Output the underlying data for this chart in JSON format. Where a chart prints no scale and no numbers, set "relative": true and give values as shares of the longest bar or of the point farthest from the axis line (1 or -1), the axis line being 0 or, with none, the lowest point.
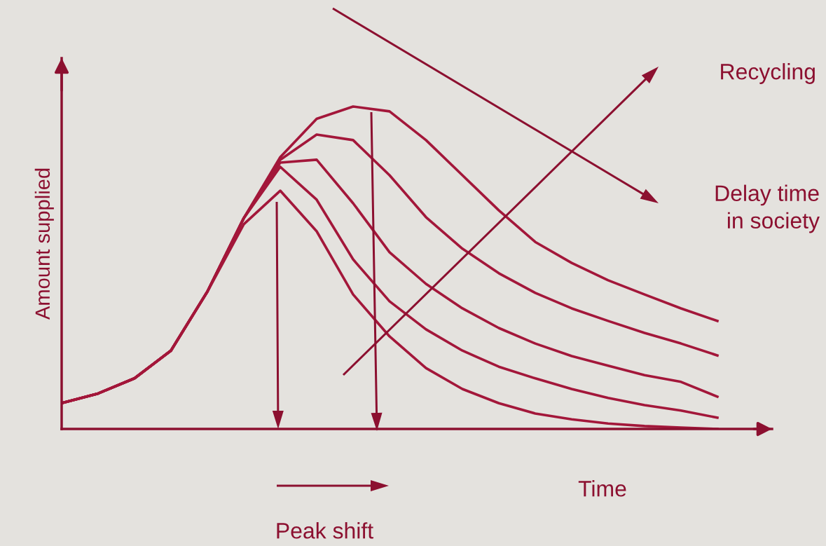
{
  "chart_data": {
    "type": "line",
    "relative": true,
    "ylabel": "Amount supplied",
    "xlabel": "Time",
    "categories": [
      null,
      null,
      null,
      null,
      null,
      null,
      null,
      null,
      null,
      null,
      null,
      null,
      null,
      null,
      null,
      null,
      null,
      null,
      null
    ],
    "series": [
      {
        "color": "#a3173a",
        "values": [
          0.08,
          0.11,
          0.157,
          0.243,
          0.426,
          0.654,
          0.843,
          0.962,
          1.0,
          0.985,
          0.896,
          0.787,
          0.678,
          0.58,
          0.515,
          0.461,
          0.417,
          0.374,
          0.335
        ]
      },
      {
        "color": "#a3173a",
        "values": [
          0.08,
          0.11,
          0.157,
          0.243,
          0.426,
          0.654,
          0.835,
          0.913,
          0.896,
          0.787,
          0.657,
          0.559,
          0.483,
          0.422,
          0.374,
          0.335,
          0.298,
          0.265,
          0.228
        ]
      },
      {
        "color": "#a3173a",
        "values": [
          0.08,
          0.11,
          0.157,
          0.243,
          0.426,
          0.654,
          0.826,
          0.835,
          0.7,
          0.548,
          0.45,
          0.374,
          0.313,
          0.265,
          0.226,
          0.196,
          0.167,
          0.146,
          0.1
        ]
      },
      {
        "color": "#a3173a",
        "values": [
          0.08,
          0.11,
          0.157,
          0.243,
          0.426,
          0.654,
          0.813,
          0.711,
          0.526,
          0.396,
          0.309,
          0.243,
          0.193,
          0.157,
          0.124,
          0.096,
          0.074,
          0.057,
          0.035
        ]
      },
      {
        "color": "#a3173a",
        "values": [
          0.08,
          0.11,
          0.157,
          0.243,
          0.426,
          0.635,
          0.739,
          0.613,
          0.417,
          0.287,
          0.189,
          0.124,
          0.08,
          0.048,
          0.03,
          0.017,
          0.009,
          0.004,
          0.0
        ]
      }
    ],
    "annotations": [
      "Recycling",
      "Delay time\nin society",
      "Peak shift"
    ],
    "grid": false,
    "legend": false,
    "marker": "none",
    "line_style": "solid"
  }
}
